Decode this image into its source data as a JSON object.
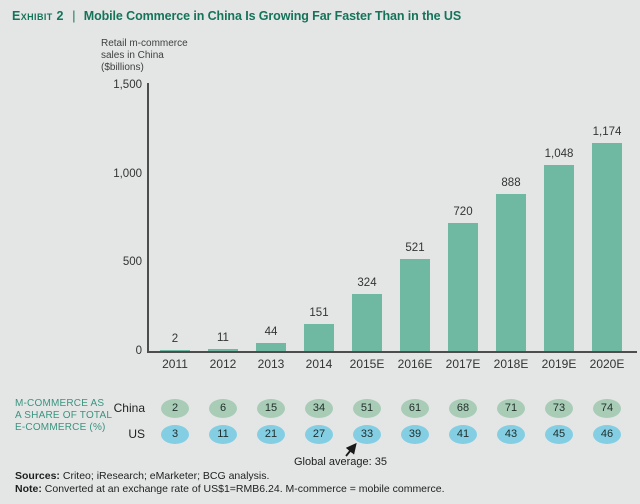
{
  "header": {
    "exhibit_label": "Exhibit 2",
    "separator": "|",
    "title": "Mobile Commerce in China Is Growing Far Faster Than in the US"
  },
  "chart_data": {
    "type": "bar",
    "title": "Retail m-commerce sales in China ($billions)",
    "ylabel_lines": [
      "Retail m-commerce",
      "sales in China",
      "($billions)"
    ],
    "categories": [
      "2011",
      "2012",
      "2013",
      "2014",
      "2015E",
      "2016E",
      "2017E",
      "2018E",
      "2019E",
      "2020E"
    ],
    "values": [
      2,
      11,
      44,
      151,
      324,
      521,
      720,
      888,
      1048,
      1174
    ],
    "bar_labels": [
      "2",
      "11",
      "44",
      "151",
      "324",
      "521",
      "720",
      "888",
      "1,048",
      "1,174"
    ],
    "ylim": [
      0,
      1500
    ],
    "yticks": [
      {
        "value": 0,
        "label": "0"
      },
      {
        "value": 500,
        "label": "500"
      },
      {
        "value": 1000,
        "label": "1,000"
      },
      {
        "value": 1500,
        "label": "1,500"
      }
    ],
    "grid": false,
    "legend": "none",
    "bar_color": "#6fb8a1"
  },
  "share_table": {
    "label_lines": [
      "M-COMMERCE AS",
      "A SHARE OF TOTAL",
      "E-COMMERCE (%)"
    ],
    "rows": [
      {
        "name": "China",
        "values": [
          "2",
          "6",
          "15",
          "34",
          "51",
          "61",
          "68",
          "71",
          "73",
          "74"
        ],
        "badge_color": "#a9ccb6"
      },
      {
        "name": "US",
        "values": [
          "3",
          "11",
          "21",
          "27",
          "33",
          "39",
          "41",
          "43",
          "45",
          "46"
        ],
        "badge_color": "#84cee4"
      }
    ],
    "annotation_label": "Global average: 35"
  },
  "footer": {
    "sources_label": "Sources:",
    "sources_text": "Criteo; iResearch; eMarketer; BCG analysis.",
    "note_label": "Note:",
    "note_text": "Converted at an exchange rate of US$1=RMB6.24. M-commerce = mobile commerce."
  },
  "colors": {
    "background": "#e4e6e6",
    "title_green": "#15735a",
    "bar_teal": "#6fb8a1",
    "table_label_green": "#3a947f",
    "china_badge": "#a9ccb6",
    "us_badge": "#84cee4",
    "axis": "#4d4d4d",
    "text_dark": "#333333"
  }
}
